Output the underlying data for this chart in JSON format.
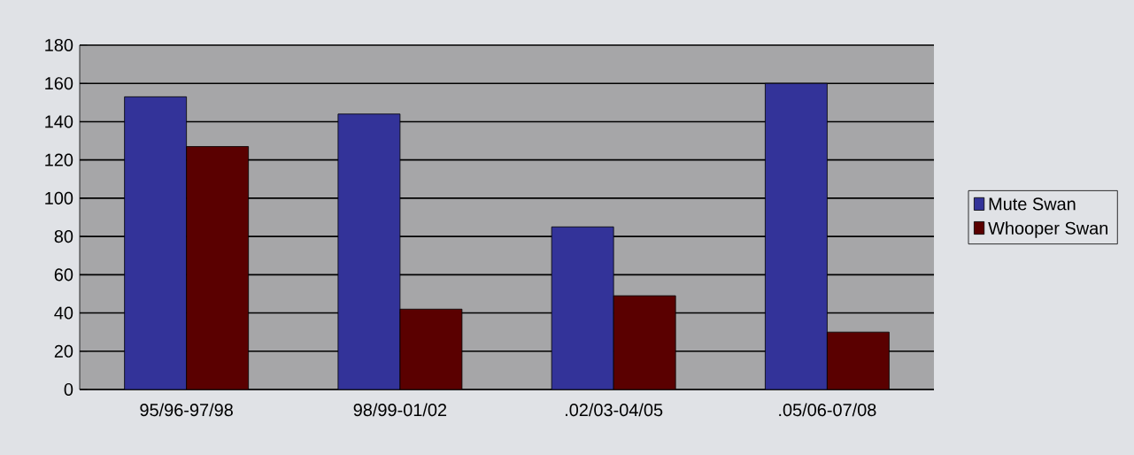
{
  "chart_data": {
    "type": "bar",
    "categories": [
      "95/96-97/98",
      "98/99-01/02",
      ".02/03-04/05",
      ".05/06-07/08"
    ],
    "series": [
      {
        "name": "Mute Swan",
        "color": "#333399",
        "values": [
          153,
          144,
          85,
          160
        ]
      },
      {
        "name": "Whooper Swan",
        "color": "#5a0000",
        "values": [
          127,
          42,
          49,
          30
        ]
      }
    ],
    "ylim": [
      0,
      180
    ],
    "yticks": [
      0,
      20,
      40,
      60,
      80,
      100,
      120,
      140,
      160,
      180
    ],
    "grid": "y",
    "legend": "right"
  }
}
